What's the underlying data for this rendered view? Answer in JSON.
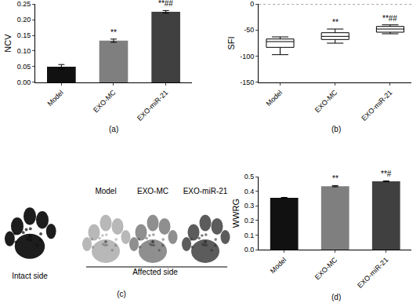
{
  "chart_data": [
    {
      "type": "bar",
      "panel": "(a)",
      "y_label": "NCV",
      "categories": [
        "Model",
        "EXO-MC",
        "EXO-miR-21"
      ],
      "values": [
        0.05,
        0.133,
        0.225
      ],
      "errors": [
        0.007,
        0.005,
        0.004
      ],
      "significance": [
        null,
        "**",
        "**##"
      ],
      "colors": [
        "#111111",
        "#7f7f7f",
        "#404040"
      ],
      "ylim": [
        0,
        0.25
      ],
      "yticks": [
        {
          "value": 0,
          "label": "0.00"
        },
        {
          "value": 0.05,
          "label": "0.05"
        },
        {
          "value": 0.1,
          "label": "0.10"
        },
        {
          "value": 0.15,
          "label": "0.15"
        },
        {
          "value": 0.2,
          "label": "0.20"
        },
        {
          "value": 0.25,
          "label": "0.25"
        }
      ]
    },
    {
      "type": "box",
      "panel": "(b)",
      "y_label": "SFI",
      "categories": [
        "Model",
        "EXO-MC",
        "EXO-miR-21"
      ],
      "min": [
        -97,
        -75,
        -57
      ],
      "q1": [
        -83,
        -68,
        -54
      ],
      "median": [
        -72,
        -62,
        -48
      ],
      "q3": [
        -67,
        -55,
        -43
      ],
      "max": [
        -63,
        -48,
        -40
      ],
      "significance": [
        null,
        "**",
        "**##"
      ],
      "reference_line": 0,
      "ylim": [
        -150,
        0
      ],
      "yticks": [
        -150,
        -100,
        -50,
        0
      ]
    },
    {
      "type": "bar",
      "panel": "(d)",
      "y_label": "WWRG",
      "categories": [
        "Model",
        "EXO-MC",
        "EXO-miR-21"
      ],
      "values": [
        0.355,
        0.435,
        0.468
      ],
      "errors": [
        0.003,
        0.004,
        0.003
      ],
      "significance": [
        null,
        "**",
        "**#"
      ],
      "colors": [
        "#111111",
        "#7f7f7f",
        "#404040"
      ],
      "ylim": [
        0,
        0.5
      ],
      "yticks": [
        {
          "value": 0,
          "label": "0.0"
        },
        {
          "value": 0.1,
          "label": "0.1"
        },
        {
          "value": 0.2,
          "label": "0.2"
        },
        {
          "value": 0.3,
          "label": "0.3"
        },
        {
          "value": 0.4,
          "label": "0.4"
        },
        {
          "value": 0.5,
          "label": "0.5"
        }
      ]
    }
  ],
  "panel_c": {
    "panel": "(c)",
    "intact_label": "Intact side",
    "affected_label": "Affected side",
    "groups": [
      "Model",
      "EXO-MC",
      "EXO-miR-21"
    ]
  }
}
